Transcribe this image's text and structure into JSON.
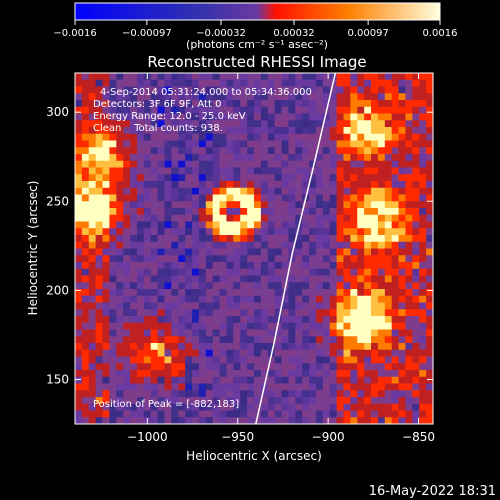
{
  "chart_data": {
    "type": "heatmap",
    "title": "Reconstructed RHESSI Image",
    "xlabel": "Heliocentric X (arcsec)",
    "ylabel": "Heliocentric Y (arcsec)",
    "xlim": [
      -1040,
      -842
    ],
    "ylim": [
      125,
      322
    ],
    "x_ticks": [
      -1000,
      -950,
      -900,
      -850
    ],
    "x_tick_labels": [
      "−1000",
      "−950",
      "−900",
      "−850"
    ],
    "y_ticks": [
      150,
      200,
      250,
      300
    ],
    "y_tick_labels": [
      "150",
      "200",
      "250",
      "300"
    ],
    "colorbar": {
      "min": -0.0016,
      "max": 0.0016,
      "ticks": [
        -0.0016,
        -0.00097,
        -0.00032,
        0.00032,
        0.00097,
        0.0016
      ],
      "tick_labels": [
        "−0.0016",
        "−0.00097",
        "−0.00032",
        "0.00032",
        "0.00097",
        "0.0016"
      ],
      "unit_label": "(photons cm⁻² s⁻¹ asec⁻²)",
      "colors": [
        "#0000ff",
        "#2020c0",
        "#6a3aa0",
        "#ff3000",
        "#ffa000",
        "#ffffd0"
      ]
    },
    "info_lines": [
      "4-Sep-2014 05:31:24.000 to 05:34:36.000",
      "Detectors: 3F 6F 9F, Att 0",
      "Energy Range: 12.0 - 25.0 keV",
      "Clean    Total counts: 938."
    ],
    "peak_label": "Position of Peak = [-882,183]",
    "peak": [
      -882,
      183
    ],
    "limb_color": "#ffffff",
    "sources": [
      {
        "x": -952,
        "y": 244,
        "type": "ring",
        "r": 10,
        "amp": 1.0
      },
      {
        "x": -1030,
        "y": 245,
        "type": "blob",
        "amp": 0.9
      },
      {
        "x": -1025,
        "y": 275,
        "type": "blob",
        "amp": 0.7
      },
      {
        "x": -882,
        "y": 183,
        "type": "blob",
        "amp": 1.0
      },
      {
        "x": -872,
        "y": 240,
        "type": "blob",
        "amp": 0.8
      },
      {
        "x": -878,
        "y": 290,
        "type": "blob",
        "amp": 0.6
      },
      {
        "x": -995,
        "y": 165,
        "type": "blob",
        "amp": 0.6
      }
    ]
  },
  "footer": {
    "timestamp": "16-May-2022 18:31"
  }
}
